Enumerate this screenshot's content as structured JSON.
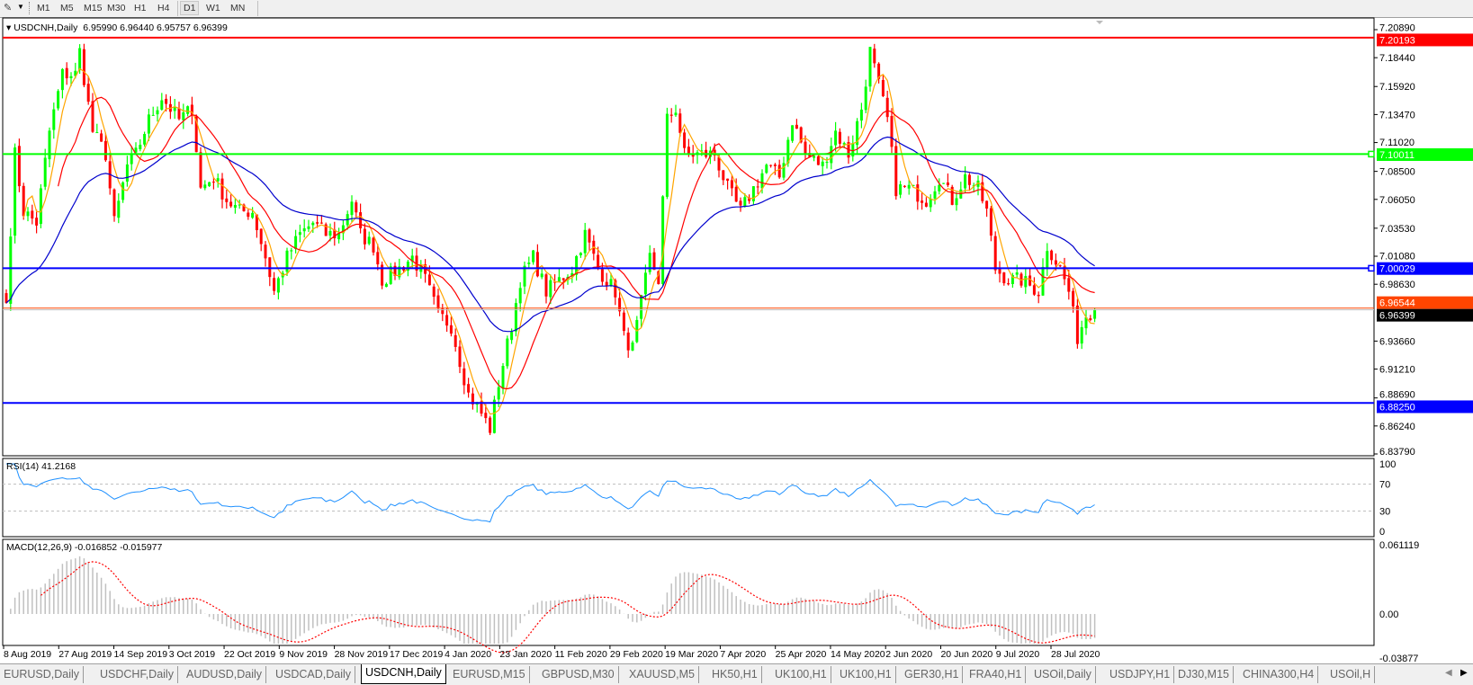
{
  "toolbar": {
    "timeframes": [
      "M1",
      "M5",
      "M15",
      "M30",
      "H1",
      "H4",
      "D1",
      "W1",
      "MN"
    ],
    "active_timeframe": "D1"
  },
  "chart": {
    "symbol_title": "USDCNH,Daily",
    "ohlc_text": "6.95990 6.96440 6.95757 6.96399",
    "price_axis_ticks": [
      "7.20890",
      "7.18440",
      "7.15920",
      "7.13470",
      "7.11020",
      "7.08500",
      "7.06050",
      "7.03530",
      "7.01080",
      "6.98630",
      "6.93660",
      "6.91210",
      "6.88690",
      "6.86240",
      "6.83790"
    ],
    "horizontal_lines": [
      {
        "price": 7.20193,
        "label": "7.20193",
        "color": "#ff0000"
      },
      {
        "price": 7.10011,
        "label": "7.10011",
        "color": "#00ff00"
      },
      {
        "price": 7.00029,
        "label": "7.00029",
        "color": "#0000ff"
      },
      {
        "price": 6.8825,
        "label": "6.88250",
        "color": "#0000ff"
      },
      {
        "price": 6.96544,
        "label": "6.96544",
        "color": "#ff4500"
      }
    ],
    "current_price": {
      "price": 6.96399,
      "label": "6.96399"
    },
    "bull_color": "#00ff00",
    "bear_color": "#ff0000",
    "ma_colors": [
      "#ffa500",
      "#ff0000",
      "#0000cd"
    ],
    "date_labels": [
      "8 Aug 2019",
      "27 Aug 2019",
      "14 Sep 2019",
      "3 Oct 2019",
      "22 Oct 2019",
      "9 Nov 2019",
      "28 Nov 2019",
      "17 Dec 2019",
      "4 Jan 2020",
      "23 Jan 2020",
      "11 Feb 2020",
      "29 Feb 2020",
      "19 Mar 2020",
      "7 Apr 2020",
      "25 Apr 2020",
      "14 May 2020",
      "2 Jun 2020",
      "20 Jun 2020",
      "9 Jul 2020",
      "28 Jul 2020"
    ]
  },
  "rsi": {
    "label": "RSI(14) 41.2168",
    "ticks": [
      "100",
      "70",
      "30",
      "0"
    ],
    "levels": [
      70,
      30
    ],
    "color": "#1e90ff"
  },
  "macd": {
    "label": "MACD(12,26,9) -0.016852 -0.015977",
    "ticks": [
      "0.061119",
      "0.00",
      "-0.03877"
    ],
    "histogram_color": "#c0c0c0",
    "signal_color": "#ff0000"
  },
  "chart_data": {
    "type": "candlestick",
    "symbol": "USDCNH",
    "timeframe": "Daily",
    "approx_close_path": [
      [
        0,
        6.97
      ],
      [
        2,
        7.1
      ],
      [
        4,
        7.05
      ],
      [
        7,
        7.04
      ],
      [
        10,
        7.12
      ],
      [
        13,
        7.17
      ],
      [
        16,
        7.17
      ],
      [
        17,
        7.19
      ],
      [
        20,
        7.12
      ],
      [
        23,
        7.1
      ],
      [
        25,
        7.04
      ],
      [
        28,
        7.09
      ],
      [
        30,
        7.1
      ],
      [
        33,
        7.13
      ],
      [
        36,
        7.15
      ],
      [
        40,
        7.13
      ],
      [
        43,
        7.14
      ],
      [
        45,
        7.07
      ],
      [
        48,
        7.08
      ],
      [
        51,
        7.06
      ],
      [
        54,
        7.05
      ],
      [
        57,
        7.05
      ],
      [
        60,
        7.01
      ],
      [
        62,
        6.98
      ],
      [
        65,
        7.01
      ],
      [
        68,
        7.03
      ],
      [
        71,
        7.04
      ],
      [
        74,
        7.03
      ],
      [
        77,
        7.03
      ],
      [
        80,
        7.06
      ],
      [
        82,
        7.03
      ],
      [
        85,
        7.02
      ],
      [
        87,
        6.99
      ],
      [
        91,
        7.0
      ],
      [
        94,
        7.01
      ],
      [
        97,
        6.99
      ],
      [
        100,
        6.96
      ],
      [
        103,
        6.95
      ],
      [
        105,
        6.92
      ],
      [
        107,
        6.89
      ],
      [
        109,
        6.88
      ],
      [
        112,
        6.86
      ],
      [
        114,
        6.9
      ],
      [
        117,
        6.95
      ],
      [
        119,
        6.99
      ],
      [
        122,
        7.01
      ],
      [
        125,
        6.98
      ],
      [
        128,
        6.99
      ],
      [
        131,
        7.0
      ],
      [
        134,
        7.03
      ],
      [
        137,
        7.0
      ],
      [
        141,
        6.98
      ],
      [
        143,
        6.94
      ],
      [
        145,
        6.93
      ],
      [
        147,
        6.97
      ],
      [
        149,
        7.01
      ],
      [
        151,
        6.99
      ],
      [
        153,
        7.13
      ],
      [
        155,
        7.14
      ],
      [
        157,
        7.1
      ],
      [
        160,
        7.1
      ],
      [
        164,
        7.1
      ],
      [
        167,
        7.07
      ],
      [
        170,
        7.05
      ],
      [
        173,
        7.07
      ],
      [
        176,
        7.09
      ],
      [
        179,
        7.08
      ],
      [
        182,
        7.13
      ],
      [
        185,
        7.1
      ],
      [
        189,
        7.09
      ],
      [
        192,
        7.12
      ],
      [
        195,
        7.1
      ],
      [
        198,
        7.14
      ],
      [
        200,
        7.19
      ],
      [
        202,
        7.16
      ],
      [
        204,
        7.13
      ],
      [
        206,
        7.07
      ],
      [
        209,
        7.07
      ],
      [
        213,
        7.06
      ],
      [
        216,
        7.08
      ],
      [
        219,
        7.06
      ],
      [
        222,
        7.08
      ],
      [
        225,
        7.07
      ],
      [
        227,
        7.05
      ],
      [
        229,
        7.0
      ],
      [
        232,
        6.99
      ],
      [
        235,
        6.99
      ],
      [
        239,
        6.98
      ],
      [
        241,
        7.02
      ],
      [
        244,
        7.0
      ],
      [
        246,
        6.98
      ],
      [
        248,
        6.94
      ],
      [
        250,
        6.96
      ],
      [
        252,
        6.96399
      ]
    ],
    "price_range": [
      6.8379,
      7.2089
    ],
    "rsi_range": [
      0,
      100
    ],
    "macd_range": [
      -0.03877,
      0.061119
    ]
  },
  "tabs": [
    {
      "label": "EURUSD,Daily"
    },
    {
      "label": "USDCHF,Daily"
    },
    {
      "label": "AUDUSD,Daily"
    },
    {
      "label": "USDCAD,Daily"
    },
    {
      "label": "USDCNH,Daily",
      "active": true
    },
    {
      "label": "EURUSD,M15"
    },
    {
      "label": "GBPUSD,M30"
    },
    {
      "label": "XAUUSD,M5"
    },
    {
      "label": "HK50,H1"
    },
    {
      "label": "UK100,H1"
    },
    {
      "label": "UK100,H1"
    },
    {
      "label": "GER30,H1"
    },
    {
      "label": "FRA40,H1"
    },
    {
      "label": "USOil,Daily"
    },
    {
      "label": "USDJPY,H1"
    },
    {
      "label": "DJ30,M15"
    },
    {
      "label": "CHINA300,H4"
    },
    {
      "label": "USOil,H"
    }
  ]
}
